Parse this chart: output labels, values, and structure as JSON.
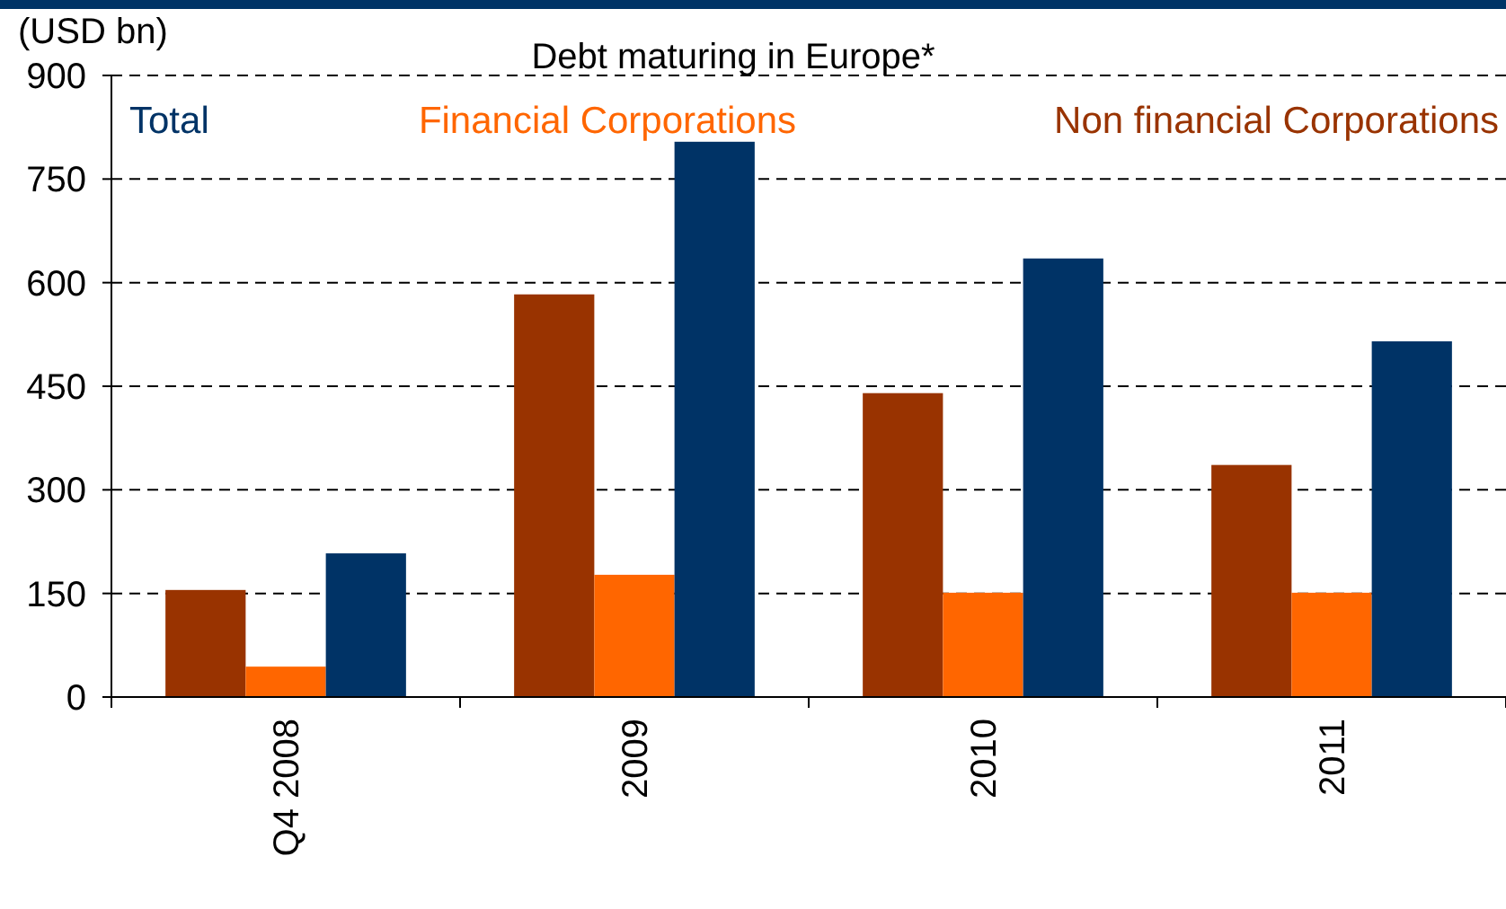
{
  "chart_data": {
    "type": "bar",
    "title": "Debt maturing in Europe*",
    "ylabel": "(USD bn)",
    "categories": [
      "Q4 2008",
      "2009",
      "2010",
      "2011"
    ],
    "series": [
      {
        "name": "Non financial Corporations",
        "color": "#993300",
        "values": [
          155,
          583,
          440,
          336
        ]
      },
      {
        "name": "Financial Corporations",
        "color": "#ff6600",
        "values": [
          44,
          177,
          151,
          151
        ]
      },
      {
        "name": "Total",
        "color": "#003366",
        "values": [
          208,
          804,
          635,
          515
        ]
      }
    ],
    "ylim": [
      0,
      900
    ],
    "yticks": [
      0,
      150,
      300,
      450,
      600,
      750,
      900
    ],
    "grid": "y",
    "legend": "top"
  }
}
